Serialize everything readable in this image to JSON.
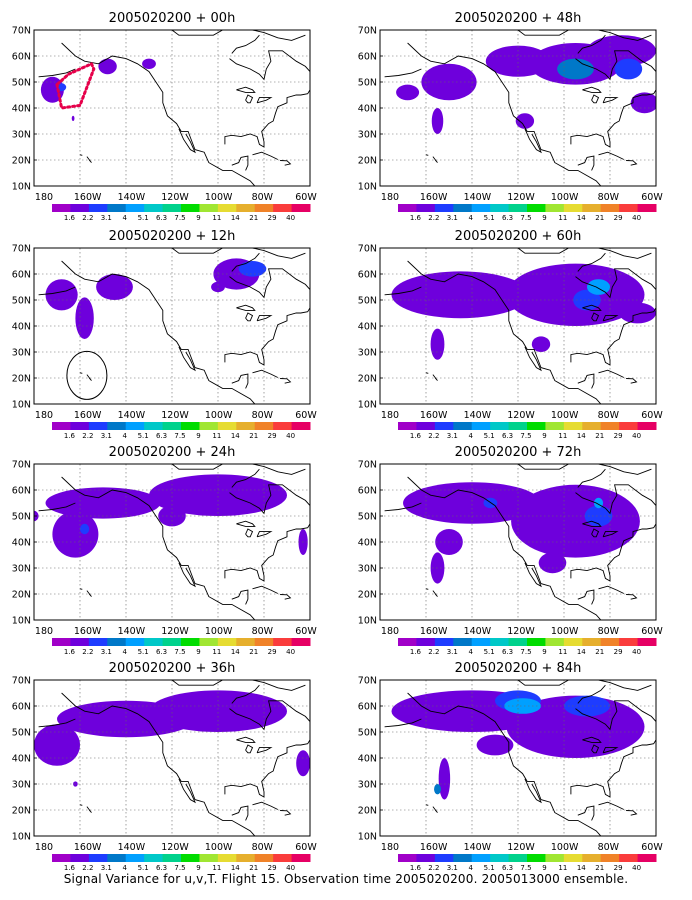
{
  "caption": "Signal Variance for u,v,T. Flight 15. Observation time 2005020200. 2005013000 ensemble.",
  "lat_labels": [
    "70N",
    "60N",
    "50N",
    "40N",
    "30N",
    "20N",
    "10N"
  ],
  "lon_labels": [
    "180",
    "160W",
    "140W",
    "120W",
    "100W",
    "80W",
    "60W"
  ],
  "colorbar": {
    "labels": [
      "1.6",
      "2.2",
      "3.1",
      "4",
      "5.1",
      "6.3",
      "7.5",
      "9",
      "11",
      "14",
      "21",
      "29",
      "40"
    ],
    "colors": [
      "#a000c8",
      "#6e00dc",
      "#1e3cff",
      "#0078c8",
      "#00a0ff",
      "#00c8c8",
      "#00d28c",
      "#00dc00",
      "#a0e632",
      "#e6dc32",
      "#e6af2d",
      "#f08228",
      "#fa3c3c",
      "#e60064"
    ]
  },
  "panels": [
    {
      "title": "2005020200 + 00h"
    },
    {
      "title": "2005020200 + 48h"
    },
    {
      "title": "2005020200 + 12h"
    },
    {
      "title": "2005020200 + 60h"
    },
    {
      "title": "2005020200 + 24h"
    },
    {
      "title": "2005020200 + 72h"
    },
    {
      "title": "2005020200 + 36h"
    },
    {
      "title": "2005020200 + 84h"
    }
  ]
}
